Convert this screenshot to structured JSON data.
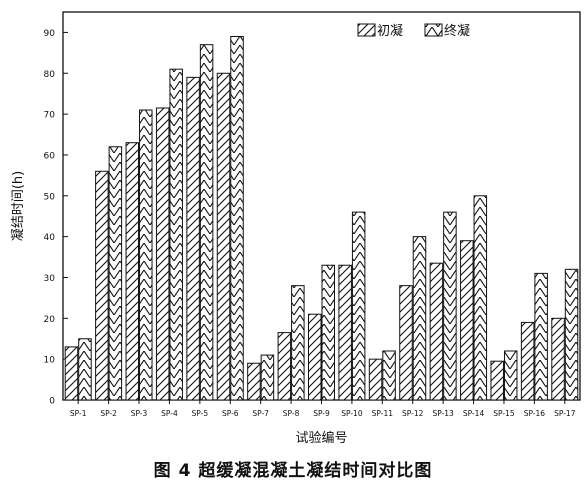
{
  "caption": "图 4   超缓凝混凝土凝结时间对比图",
  "chart_data": {
    "type": "bar",
    "title": "",
    "xlabel": "试验编号",
    "ylabel": "凝结时间(h)",
    "ylim": [
      0,
      95
    ],
    "yticks": [
      0,
      10,
      20,
      30,
      40,
      50,
      60,
      70,
      80,
      90
    ],
    "legend_position": "top-right",
    "grid": false,
    "categories": [
      "SP-1",
      "SP-2",
      "SP-3",
      "SP-4",
      "SP-5",
      "SP-6",
      "SP-7",
      "SP-8",
      "SP-9",
      "SP-10",
      "SP-11",
      "SP-12",
      "SP-13",
      "SP-14",
      "SP-15",
      "SP-16",
      "SP-17"
    ],
    "series": [
      {
        "name": "初凝",
        "pattern": "forward-hatch",
        "values": [
          13,
          56,
          63,
          71.5,
          79,
          80,
          9,
          16.5,
          21,
          33,
          10,
          28,
          33.5,
          39,
          9.5,
          19,
          20
        ]
      },
      {
        "name": "终凝",
        "pattern": "zigzag-hatch",
        "values": [
          15,
          62,
          71,
          81,
          87,
          89,
          11,
          28,
          33,
          46,
          12,
          40,
          46,
          50,
          12,
          31,
          32
        ]
      }
    ]
  }
}
